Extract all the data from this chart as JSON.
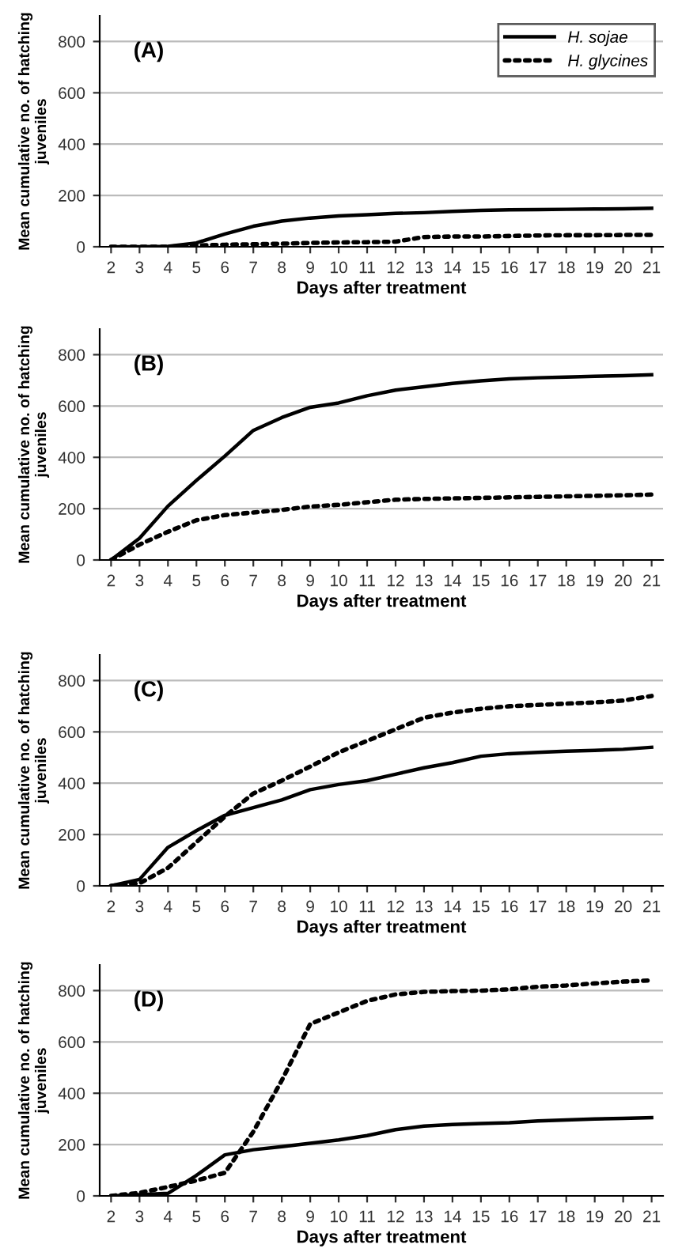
{
  "chart_data": [
    {
      "type": "line",
      "xlabel": "Days after treatment",
      "ylabel": "Mean cumulative no. of hatching\njuveniles",
      "annotations": [
        "(A)"
      ],
      "categories": [
        "2",
        "3",
        "4",
        "5",
        "6",
        "7",
        "8",
        "9",
        "10",
        "11",
        "12",
        "13",
        "14",
        "15",
        "16",
        "17",
        "18",
        "19",
        "20",
        "21"
      ],
      "ylim": [
        0,
        900
      ],
      "yticks": [
        0,
        200,
        400,
        600,
        800
      ],
      "grid": "y",
      "legend": "top right",
      "series": [
        {
          "name": "H. sojae",
          "color": "#000000",
          "line_style": "solid",
          "values": [
            0,
            0,
            2,
            15,
            50,
            80,
            100,
            112,
            120,
            125,
            130,
            133,
            138,
            142,
            144,
            145,
            146,
            147,
            148,
            150
          ]
        },
        {
          "name": "H. glycines",
          "color": "#000000",
          "line_style": "dotted",
          "values": [
            0,
            0,
            0,
            5,
            8,
            10,
            12,
            15,
            17,
            18,
            20,
            38,
            40,
            40,
            42,
            44,
            45,
            45,
            46,
            46
          ]
        }
      ]
    },
    {
      "type": "line",
      "xlabel": "Days after treatment",
      "ylabel": "Mean cumulative no. of hatching\njuveniles",
      "annotations": [
        "(B)"
      ],
      "categories": [
        "2",
        "3",
        "4",
        "5",
        "6",
        "7",
        "8",
        "9",
        "10",
        "11",
        "12",
        "13",
        "14",
        "15",
        "16",
        "17",
        "18",
        "19",
        "20",
        "21"
      ],
      "ylim": [
        0,
        900
      ],
      "yticks": [
        0,
        200,
        400,
        600,
        800
      ],
      "grid": "y",
      "series": [
        {
          "color": "#000000",
          "line_style": "solid",
          "values": [
            0,
            85,
            210,
            310,
            405,
            505,
            555,
            595,
            612,
            640,
            662,
            675,
            688,
            698,
            706,
            710,
            713,
            716,
            718,
            722
          ]
        },
        {
          "color": "#000000",
          "line_style": "dotted",
          "values": [
            0,
            60,
            110,
            155,
            175,
            185,
            195,
            208,
            215,
            225,
            235,
            238,
            240,
            242,
            244,
            246,
            248,
            250,
            252,
            255
          ]
        }
      ]
    },
    {
      "type": "line",
      "xlabel": "Days after treatment",
      "ylabel": "Mean cumulative no. of hatching\njuveniles",
      "annotations": [
        "(C)"
      ],
      "categories": [
        "2",
        "3",
        "4",
        "5",
        "6",
        "7",
        "8",
        "9",
        "10",
        "11",
        "12",
        "13",
        "14",
        "15",
        "16",
        "17",
        "18",
        "19",
        "20",
        "21"
      ],
      "ylim": [
        0,
        900
      ],
      "yticks": [
        0,
        200,
        400,
        600,
        800
      ],
      "grid": "y",
      "series": [
        {
          "color": "#000000",
          "line_style": "solid",
          "values": [
            0,
            25,
            150,
            215,
            275,
            305,
            335,
            375,
            395,
            410,
            435,
            460,
            480,
            505,
            515,
            520,
            525,
            528,
            532,
            540
          ]
        },
        {
          "color": "#000000",
          "line_style": "dotted",
          "values": [
            0,
            10,
            70,
            170,
            270,
            360,
            410,
            465,
            520,
            565,
            610,
            655,
            675,
            690,
            700,
            705,
            710,
            715,
            722,
            740
          ]
        }
      ]
    },
    {
      "type": "line",
      "xlabel": "Days after treatment",
      "ylabel": "Mean cumulative no. of hatching\njuveniles",
      "annotations": [
        "(D)"
      ],
      "categories": [
        "2",
        "3",
        "4",
        "5",
        "6",
        "7",
        "8",
        "9",
        "10",
        "11",
        "12",
        "13",
        "14",
        "15",
        "16",
        "17",
        "18",
        "19",
        "20",
        "21"
      ],
      "ylim": [
        0,
        900
      ],
      "yticks": [
        0,
        200,
        400,
        600,
        800
      ],
      "grid": "y",
      "series": [
        {
          "color": "#000000",
          "line_style": "solid",
          "values": [
            0,
            5,
            10,
            80,
            160,
            180,
            192,
            205,
            218,
            235,
            258,
            272,
            278,
            282,
            285,
            292,
            296,
            300,
            302,
            305
          ]
        },
        {
          "color": "#000000",
          "line_style": "dotted",
          "values": [
            0,
            12,
            35,
            60,
            90,
            250,
            450,
            670,
            715,
            760,
            785,
            795,
            798,
            800,
            805,
            815,
            820,
            828,
            835,
            840
          ]
        }
      ]
    }
  ]
}
